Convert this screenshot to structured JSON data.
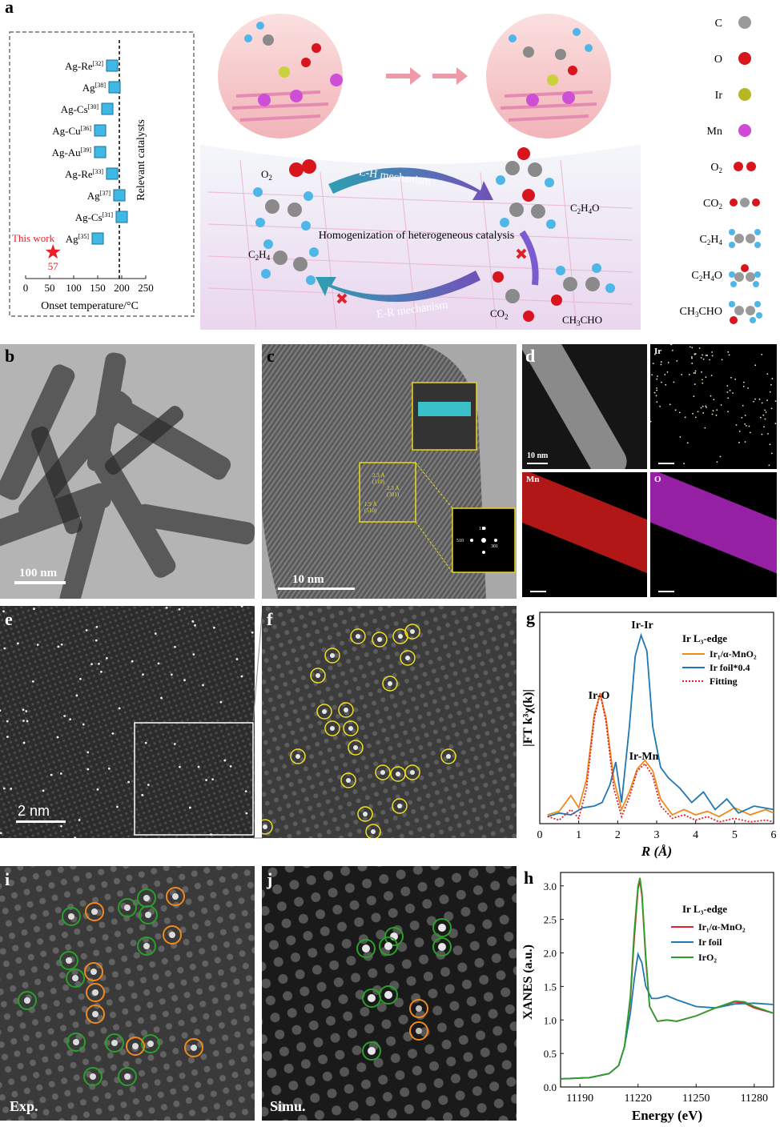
{
  "figure": {
    "panel_a": {
      "label": "a",
      "chart_data": {
        "type": "scatter",
        "xlabel": "Onset temperature/°C",
        "ylabel": "Relevant catalysts",
        "xticks": [
          0,
          50,
          100,
          150,
          200,
          250
        ],
        "xlim": [
          0,
          250
        ],
        "reference_line_x": 195,
        "points": [
          {
            "label": "Ag-Re",
            "ref": "[32]",
            "x": 180
          },
          {
            "label": "Ag",
            "ref": "[38]",
            "x": 185
          },
          {
            "label": "Ag-Cs",
            "ref": "[30]",
            "x": 170
          },
          {
            "label": "Ag-Cu",
            "ref": "[36]",
            "x": 155
          },
          {
            "label": "Ag-Au",
            "ref": "[39]",
            "x": 155
          },
          {
            "label": "Ag-Re",
            "ref": "[33]",
            "x": 180
          },
          {
            "label": "Ag",
            "ref": "[37]",
            "x": 195
          },
          {
            "label": "Ag-Cs",
            "ref": "[31]",
            "x": 200
          },
          {
            "label": "Ag",
            "ref": "[35]",
            "x": 150
          }
        ],
        "highlight": {
          "label": "This work",
          "x": 57,
          "value_label": "57"
        }
      },
      "scheme": {
        "mech_top": "L-H mechanism",
        "mech_bottom": "E-R mechanism",
        "center": "Homogenization of heterogeneous catalysis",
        "o2": "O",
        "o2_sub": "2",
        "c2h4": "C",
        "c2h4_sub": "4",
        "c2h4o_product": "C",
        "c2h4o_sub": "O",
        "co2_product": "CO",
        "co2_sub": "2",
        "ch3cho_product": "CH",
        "ch3cho_rest": "CHO"
      },
      "legend": [
        {
          "label": "C",
          "color": "#9a9a9a"
        },
        {
          "label": "O",
          "color": "#d8141c"
        },
        {
          "label": "Ir",
          "color": "#b5b820"
        },
        {
          "label": "Mn",
          "color": "#d04ad6"
        },
        {
          "label": "O",
          "sub": "2"
        },
        {
          "label": "CO",
          "sub": "2"
        },
        {
          "label": "C",
          "sub": "4"
        },
        {
          "label": "C",
          "sub": "O"
        },
        {
          "label": "CH",
          "rest": "CHO"
        }
      ]
    },
    "panel_b": {
      "label": "b",
      "scale": "100 nm"
    },
    "panel_c": {
      "label": "c",
      "scale": "10 nm",
      "fft": [
        "110",
        "510",
        "301"
      ],
      "spacings": [
        "2.3 Å",
        "(110)",
        "2.3 Å",
        "(301)",
        "1.9 Å",
        "(510)"
      ]
    },
    "panel_d": {
      "label": "d",
      "scale": "10 nm",
      "maps": [
        "Ir",
        "Mn",
        "O"
      ],
      "colors": {
        "Ir": "#e8e8c0",
        "Mn": "#d11b1b",
        "O": "#b026c0"
      }
    },
    "panel_e": {
      "label": "e",
      "scale": "2 nm"
    },
    "panel_f": {
      "label": "f"
    },
    "panel_g": {
      "label": "g",
      "chart_data": {
        "type": "line",
        "xlabel": "R (Å)",
        "ylabel": "|FT k³χ(k)|",
        "xlim": [
          0,
          6
        ],
        "xticks": [
          0,
          1,
          2,
          3,
          4,
          5,
          6
        ],
        "legend_title": "Ir L₃-edge",
        "annotations": [
          "Ir-Ir",
          "Ir-O",
          "Ir-Mn"
        ],
        "series": [
          {
            "name": "Ir₁/α-MnO₂",
            "color": "#f08a1c",
            "x": [
              0.2,
              0.5,
              0.8,
              1.0,
              1.2,
              1.4,
              1.55,
              1.7,
              1.9,
              2.1,
              2.3,
              2.5,
              2.7,
              2.9,
              3.1,
              3.4,
              3.7,
              4.0,
              4.3,
              4.6,
              5.0,
              5.4,
              5.8,
              6.0
            ],
            "y": [
              0.05,
              0.07,
              0.16,
              0.09,
              0.25,
              0.62,
              0.74,
              0.6,
              0.25,
              0.08,
              0.18,
              0.31,
              0.36,
              0.3,
              0.14,
              0.05,
              0.08,
              0.05,
              0.07,
              0.04,
              0.09,
              0.05,
              0.08,
              0.06
            ]
          },
          {
            "name": "Ir foil*0.4",
            "color": "#1f78b4",
            "x": [
              0.2,
              0.5,
              0.8,
              1.1,
              1.4,
              1.6,
              1.8,
              1.95,
              2.1,
              2.3,
              2.45,
              2.6,
              2.75,
              2.9,
              3.1,
              3.3,
              3.6,
              3.9,
              4.2,
              4.5,
              4.8,
              5.1,
              5.5,
              6.0
            ],
            "y": [
              0.04,
              0.06,
              0.05,
              0.09,
              0.1,
              0.12,
              0.22,
              0.35,
              0.12,
              0.55,
              0.95,
              1.07,
              0.98,
              0.55,
              0.32,
              0.26,
              0.2,
              0.12,
              0.18,
              0.08,
              0.14,
              0.06,
              0.1,
              0.08
            ]
          },
          {
            "name": "Fitting",
            "color": "#e0202a",
            "x": [
              0.2,
              0.5,
              0.8,
              1.0,
              1.2,
              1.4,
              1.55,
              1.7,
              1.9,
              2.1,
              2.3,
              2.5,
              2.7,
              2.9,
              3.1,
              3.4,
              3.7,
              4.0,
              4.3,
              4.6,
              5.0,
              5.4,
              5.8,
              6.0
            ],
            "y": [
              0.04,
              0.02,
              0.08,
              0.03,
              0.2,
              0.6,
              0.74,
              0.58,
              0.2,
              0.04,
              0.15,
              0.3,
              0.34,
              0.27,
              0.1,
              0.03,
              0.05,
              0.02,
              0.04,
              0.01,
              0.03,
              0.01,
              0.02,
              0.01
            ]
          }
        ]
      }
    },
    "panel_h": {
      "label": "h",
      "chart_data": {
        "type": "line",
        "xlabel": "Energy (eV)",
        "ylabel": "XANES (a.u.)",
        "xlim": [
          11180,
          11290
        ],
        "ylim": [
          0,
          3.2
        ],
        "xticks": [
          11190,
          11220,
          11250,
          11280
        ],
        "yticks": [
          "0.0",
          "0.5",
          "1.0",
          "1.5",
          "2.0",
          "2.5",
          "3.0"
        ],
        "legend_title": "Ir L₃-edge",
        "series": [
          {
            "name": "Ir₁/α-MnO₂",
            "color": "#e0202a",
            "x": [
              11180,
              11195,
              11205,
              11210,
              11213,
              11216,
              11218,
              11220,
              11221,
              11222,
              11224,
              11226,
              11230,
              11235,
              11240,
              11250,
              11260,
              11270,
              11275,
              11280,
              11290
            ],
            "y": [
              0.12,
              0.14,
              0.2,
              0.32,
              0.6,
              1.3,
              2.2,
              2.95,
              3.08,
              2.85,
              1.9,
              1.2,
              0.98,
              1.0,
              0.98,
              1.06,
              1.18,
              1.27,
              1.25,
              1.18,
              1.1
            ]
          },
          {
            "name": "Ir foil",
            "color": "#1f78b4",
            "x": [
              11180,
              11195,
              11205,
              11210,
              11213,
              11216,
              11218,
              11220,
              11222,
              11224,
              11227,
              11230,
              11235,
              11240,
              11250,
              11260,
              11270,
              11280,
              11290
            ],
            "y": [
              0.12,
              0.14,
              0.2,
              0.32,
              0.6,
              1.1,
              1.6,
              1.98,
              1.85,
              1.5,
              1.32,
              1.32,
              1.36,
              1.3,
              1.2,
              1.18,
              1.24,
              1.25,
              1.23
            ]
          },
          {
            "name": "IrO₂",
            "color": "#2aa02a",
            "x": [
              11180,
              11195,
              11205,
              11210,
              11213,
              11216,
              11218,
              11220,
              11221,
              11222,
              11224,
              11226,
              11230,
              11235,
              11240,
              11250,
              11260,
              11270,
              11275,
              11280,
              11290
            ],
            "y": [
              0.12,
              0.14,
              0.2,
              0.32,
              0.6,
              1.35,
              2.3,
              3.0,
              3.12,
              2.9,
              1.95,
              1.2,
              0.98,
              1.0,
              0.98,
              1.06,
              1.18,
              1.28,
              1.27,
              1.2,
              1.1
            ]
          }
        ]
      }
    },
    "panel_i": {
      "label": "i",
      "tag": "Exp."
    },
    "panel_j": {
      "label": "j",
      "tag": "Simu."
    }
  }
}
